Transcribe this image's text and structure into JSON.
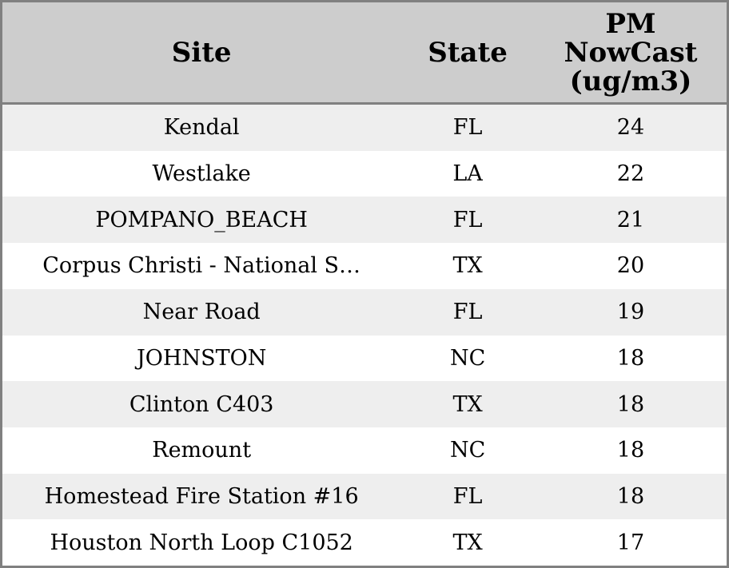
{
  "colors": {
    "border": "#808080",
    "header_bg": "#cdcdcd",
    "row_alt_bg": "#eeeeee",
    "row_bg": "#ffffff",
    "text": "#000000"
  },
  "header": {
    "site_label": "Site",
    "state_label": "State",
    "pm_label_full": "PM NowCast (ug/m3)",
    "pm_label_lines": [
      "PM",
      "NowCast",
      "(ug/m3)"
    ]
  },
  "chart_data": {
    "type": "table",
    "title": "",
    "columns": [
      "Site",
      "State",
      "PM NowCast (ug/m3)"
    ],
    "rows": [
      {
        "site": "Kendal",
        "state": "FL",
        "pm_nowcast": 24
      },
      {
        "site": "Westlake",
        "state": "LA",
        "pm_nowcast": 22
      },
      {
        "site": "POMPANO_BEACH",
        "state": "FL",
        "pm_nowcast": 21
      },
      {
        "site": "Corpus Christi - National S…",
        "state": "TX",
        "pm_nowcast": 20
      },
      {
        "site": "Near Road",
        "state": "FL",
        "pm_nowcast": 19
      },
      {
        "site": "JOHNSTON",
        "state": "NC",
        "pm_nowcast": 18
      },
      {
        "site": "Clinton C403",
        "state": "TX",
        "pm_nowcast": 18
      },
      {
        "site": "Remount",
        "state": "NC",
        "pm_nowcast": 18
      },
      {
        "site": "Homestead Fire Station #16",
        "state": "FL",
        "pm_nowcast": 18
      },
      {
        "site": "Houston North Loop C1052",
        "state": "TX",
        "pm_nowcast": 17
      }
    ]
  }
}
